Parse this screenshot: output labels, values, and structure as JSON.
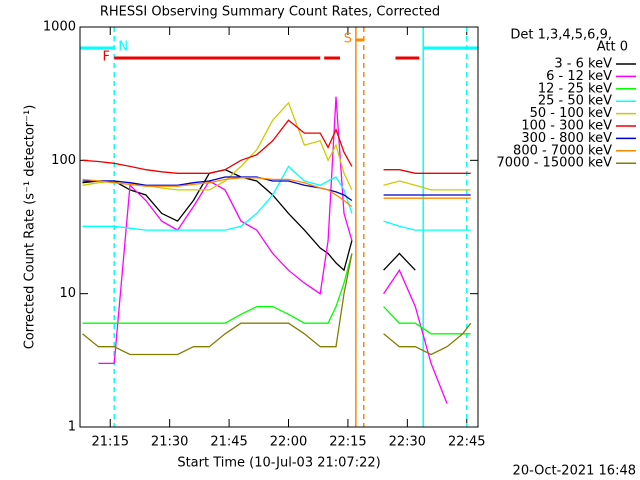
{
  "chart_data": {
    "type": "line",
    "title": "RHESSI Observing Summary Count Rates, Corrected",
    "ylabel": "Corrected Count Rate (s⁻¹ detector⁻¹)",
    "xlabel": "Start Time (10-Jul-03 21:07:22)",
    "legend_title": [
      "Det 1,3,4,5,6,9,",
      "Att 0"
    ],
    "footer": "20-Oct-2021 16:48",
    "log_y": true,
    "xlim": [
      "21:07:22",
      "22:47:50"
    ],
    "xticks": [
      "21:15",
      "21:30",
      "21:45",
      "22:00",
      "22:15",
      "22:30",
      "22:45"
    ],
    "ylim": [
      1,
      1000
    ],
    "yticks": [
      1,
      10,
      100,
      1000
    ],
    "x": [
      "21:08",
      "21:12",
      "21:16",
      "21:20",
      "21:24",
      "21:28",
      "21:32",
      "21:36",
      "21:40",
      "21:44",
      "21:48",
      "21:52",
      "21:56",
      "22:00",
      "22:04",
      "22:08",
      "22:10",
      "22:12",
      "22:14",
      "22:16",
      "22:20",
      "22:24",
      "22:28",
      "22:32",
      "22:36",
      "22:40",
      "22:44",
      "22:46"
    ],
    "series": [
      {
        "name": "3 - 6 keV",
        "color": "#000000",
        "values": [
          68,
          70,
          70,
          60,
          55,
          40,
          35,
          50,
          80,
          85,
          75,
          70,
          55,
          40,
          30,
          22,
          20,
          17,
          15,
          25,
          null,
          15,
          20,
          15,
          null,
          null,
          null,
          null
        ]
      },
      {
        "name": "6 - 12 keV",
        "color": "#ff00ff",
        "values": [
          null,
          3,
          3,
          65,
          50,
          35,
          30,
          45,
          70,
          60,
          35,
          30,
          20,
          15,
          12,
          10,
          25,
          300,
          40,
          25,
          null,
          10,
          15,
          8,
          3,
          1.5,
          null,
          null
        ]
      },
      {
        "name": "12 - 25 keV",
        "color": "#00ff00",
        "values": [
          6,
          6,
          6,
          6,
          6,
          6,
          6,
          6,
          6,
          6,
          7,
          8,
          8,
          7,
          6,
          6,
          6,
          8,
          12,
          20,
          null,
          8,
          6,
          6,
          5,
          5,
          5,
          5
        ]
      },
      {
        "name": "25 - 50 keV",
        "color": "#00ffff",
        "values": [
          32,
          32,
          32,
          31,
          30,
          30,
          30,
          30,
          30,
          30,
          32,
          40,
          55,
          90,
          70,
          65,
          70,
          75,
          60,
          40,
          null,
          35,
          32,
          30,
          30,
          30,
          30,
          30
        ]
      },
      {
        "name": "50 - 100 keV",
        "color": "#cccc00",
        "values": [
          65,
          68,
          70,
          68,
          65,
          62,
          60,
          60,
          60,
          70,
          90,
          120,
          200,
          270,
          130,
          140,
          100,
          130,
          80,
          60,
          null,
          65,
          70,
          65,
          60,
          60,
          60,
          60
        ]
      },
      {
        "name": "100 - 300 keV",
        "color": "#ee0000",
        "values": [
          100,
          98,
          95,
          90,
          85,
          82,
          80,
          80,
          80,
          85,
          100,
          110,
          140,
          200,
          160,
          160,
          125,
          170,
          115,
          90,
          null,
          85,
          85,
          80,
          80,
          80,
          80,
          80
        ]
      },
      {
        "name": "300 - 800 keV",
        "color": "#0000cc",
        "values": [
          70,
          70,
          70,
          68,
          65,
          65,
          65,
          68,
          70,
          75,
          75,
          75,
          70,
          70,
          65,
          62,
          60,
          58,
          55,
          50,
          null,
          55,
          55,
          55,
          55,
          55,
          55,
          55
        ]
      },
      {
        "name": "800 - 7000 keV",
        "color": "#ff8800",
        "values": [
          72,
          70,
          68,
          66,
          64,
          64,
          64,
          66,
          68,
          72,
          74,
          74,
          72,
          72,
          68,
          62,
          60,
          55,
          50,
          45,
          null,
          52,
          52,
          52,
          52,
          52,
          52,
          52
        ]
      },
      {
        "name": "7000 - 15000 keV",
        "color": "#808000",
        "values": [
          5,
          4,
          4,
          3.5,
          3.5,
          3.5,
          3.5,
          4,
          4,
          5,
          6,
          6,
          6,
          6,
          5,
          4,
          4,
          4,
          10,
          20,
          null,
          5,
          4,
          4,
          3.5,
          4,
          5,
          6
        ]
      }
    ],
    "flags": [
      {
        "label": "N",
        "color": "#00ffff",
        "intervals": [
          [
            "21:07:22",
            "21:16"
          ],
          [
            "22:34",
            "22:47:50"
          ]
        ]
      },
      {
        "label": "F",
        "color": "#ee0000",
        "intervals": [
          [
            "21:16",
            "22:08"
          ],
          [
            "22:09",
            "22:13"
          ],
          [
            "22:27",
            "22:33"
          ]
        ]
      },
      {
        "label": "S",
        "color": "#ff8800",
        "intervals": [
          [
            "22:17",
            "22:19"
          ]
        ]
      }
    ],
    "markers": [
      {
        "x": "21:16",
        "color": "#00ffff",
        "dashed": true
      },
      {
        "x": "22:34",
        "color": "#00ffff",
        "dashed": false
      },
      {
        "x": "22:45",
        "color": "#00ffff",
        "dashed": true
      },
      {
        "x": "22:17",
        "color": "#ff8800",
        "dashed": false
      },
      {
        "x": "22:19",
        "color": "#ff8800",
        "dashed": true
      }
    ]
  }
}
